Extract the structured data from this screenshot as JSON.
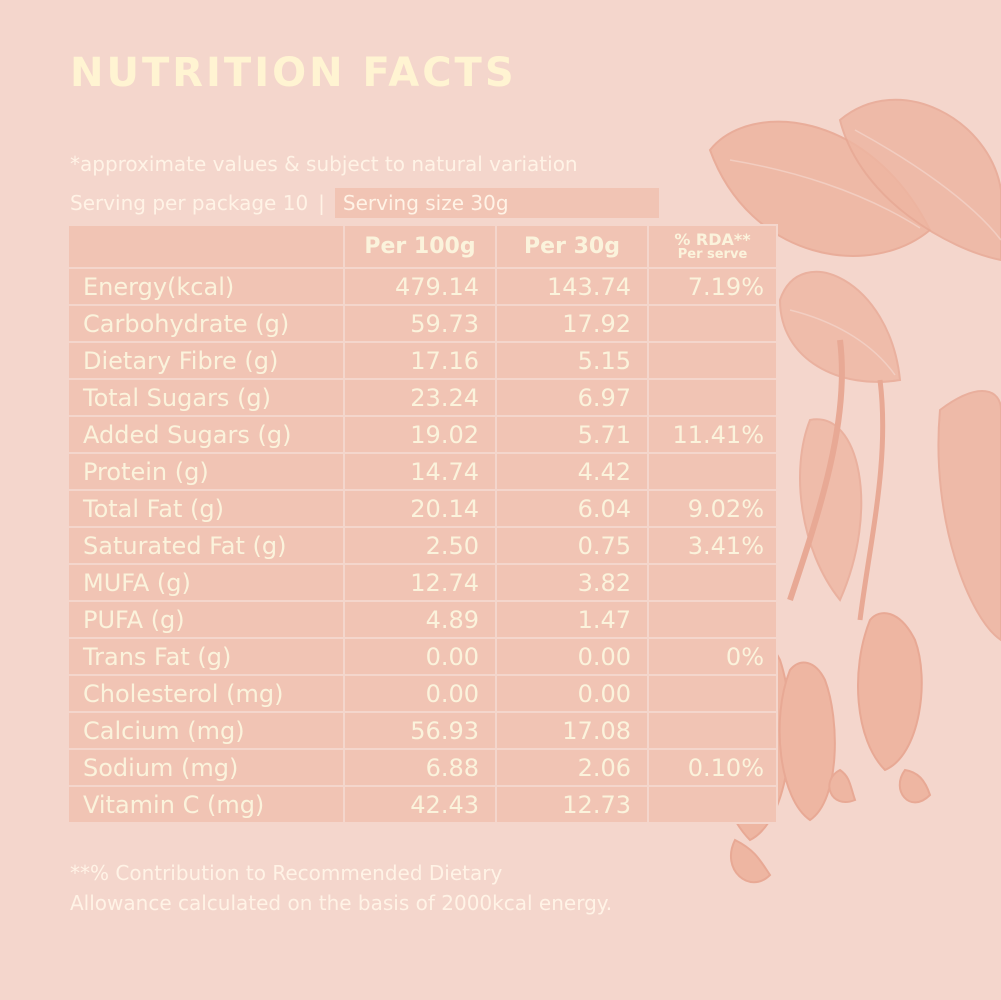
{
  "title": "NUTRITION FACTS",
  "note": "*approximate values & subject to natural variation",
  "serving": {
    "per_package": "Serving per package 10",
    "separator": "|",
    "size": "Serving size 30g"
  },
  "table": {
    "headers": {
      "per100": "Per 100g",
      "per30": "Per 30g",
      "rda": "% RDA**",
      "rda_sub": "Per serve"
    },
    "rows": [
      {
        "name": "Energy(kcal)",
        "per100": "479.14",
        "per30": "143.74",
        "rda": "7.19%"
      },
      {
        "name": "Carbohydrate (g)",
        "per100": "59.73",
        "per30": "17.92",
        "rda": ""
      },
      {
        "name": "Dietary Fibre (g)",
        "per100": "17.16",
        "per30": "5.15",
        "rda": ""
      },
      {
        "name": "Total Sugars (g)",
        "per100": "23.24",
        "per30": "6.97",
        "rda": ""
      },
      {
        "name": "Added Sugars (g)",
        "per100": "19.02",
        "per30": "5.71",
        "rda": "11.41%"
      },
      {
        "name": "Protein (g)",
        "per100": "14.74",
        "per30": "4.42",
        "rda": ""
      },
      {
        "name": "Total Fat (g)",
        "per100": "20.14",
        "per30": "6.04",
        "rda": "9.02%"
      },
      {
        "name": "Saturated Fat (g)",
        "per100": "2.50",
        "per30": "0.75",
        "rda": "3.41%"
      },
      {
        "name": "MUFA (g)",
        "per100": "12.74",
        "per30": "3.82",
        "rda": ""
      },
      {
        "name": "PUFA (g)",
        "per100": "4.89",
        "per30": "1.47",
        "rda": ""
      },
      {
        "name": "Trans Fat (g)",
        "per100": "0.00",
        "per30": "0.00",
        "rda": "0%"
      },
      {
        "name": "Cholesterol (mg)",
        "per100": "0.00",
        "per30": "0.00",
        "rda": ""
      },
      {
        "name": "Calcium (mg)",
        "per100": "56.93",
        "per30": "17.08",
        "rda": ""
      },
      {
        "name": "Sodium (mg)",
        "per100": "6.88",
        "per30": "2.06",
        "rda": "0.10%"
      },
      {
        "name": "Vitamin C (mg)",
        "per100": "42.43",
        "per30": "12.73",
        "rda": ""
      }
    ]
  },
  "footnote": {
    "line1": "**% Contribution to Recommended Dietary",
    "line2": "Allowance calculated on the basis of 2000kcal energy."
  },
  "colors": {
    "background": "#f4d6cc",
    "table_fill": "#f1c4b4",
    "text": "#fbf3dc",
    "illustration": "#eeb6a2"
  },
  "illustration": "cashew-branch-illustration"
}
